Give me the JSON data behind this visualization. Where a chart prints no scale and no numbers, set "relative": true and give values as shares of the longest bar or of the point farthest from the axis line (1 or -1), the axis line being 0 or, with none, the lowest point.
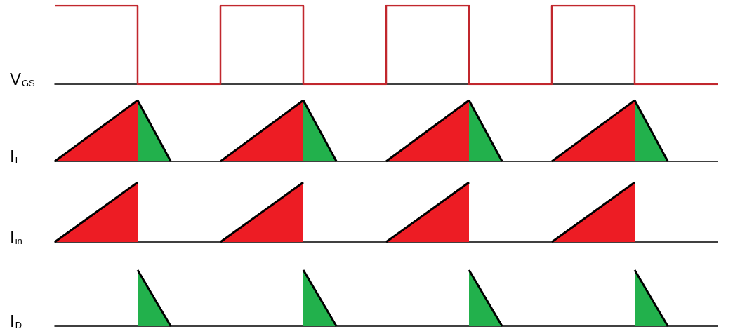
{
  "chart_data": [
    {
      "type": "step",
      "ylabel": "V$_{GS}$",
      "relative": true,
      "marker": "none",
      "tick_labels": false,
      "categories": [
        null,
        null,
        null,
        null,
        null,
        null,
        null,
        null,
        null,
        null,
        null,
        null,
        null,
        null,
        null,
        null,
        null,
        null,
        null,
        null,
        null,
        null,
        null,
        null,
        null,
        null,
        null,
        null,
        null,
        null,
        null,
        null,
        null,
        null,
        null,
        null,
        null,
        null,
        null,
        null,
        null,
        null,
        null,
        null,
        null,
        null,
        null,
        null,
        null,
        null,
        null,
        null,
        null,
        null,
        null,
        null,
        null,
        null,
        null,
        null,
        null,
        null,
        null,
        null,
        null,
        null,
        null,
        null,
        null,
        null,
        null,
        null,
        null,
        null,
        null,
        null,
        null,
        null,
        null,
        null,
        null
      ],
      "series": [
        {
          "color": "#c1272d",
          "values": [
            1,
            1,
            1,
            1,
            1,
            1,
            1,
            1,
            1,
            1,
            0,
            0,
            0,
            0,
            0,
            0,
            0,
            0,
            0,
            0,
            1,
            1,
            1,
            1,
            1,
            1,
            1,
            1,
            1,
            1,
            0,
            0,
            0,
            0,
            0,
            0,
            0,
            0,
            0,
            0,
            1,
            1,
            1,
            1,
            1,
            1,
            1,
            1,
            1,
            1,
            0,
            0,
            0,
            0,
            0,
            0,
            0,
            0,
            0,
            0,
            1,
            1,
            1,
            1,
            1,
            1,
            1,
            1,
            1,
            1,
            0,
            0,
            0,
            0,
            0,
            0,
            0,
            0,
            0,
            0,
            0
          ]
        }
      ]
    },
    {
      "type": "area",
      "ylabel": "I$_{L}$",
      "relative": true,
      "marker": "none",
      "tick_labels": false,
      "categories": [
        null,
        null,
        null,
        null,
        null,
        null,
        null,
        null,
        null,
        null,
        null,
        null,
        null,
        null,
        null,
        null,
        null,
        null,
        null,
        null,
        null,
        null,
        null,
        null,
        null,
        null,
        null,
        null,
        null,
        null,
        null,
        null,
        null,
        null,
        null,
        null,
        null,
        null,
        null,
        null,
        null,
        null,
        null,
        null,
        null,
        null,
        null,
        null,
        null,
        null,
        null,
        null,
        null,
        null,
        null,
        null,
        null,
        null,
        null,
        null,
        null,
        null,
        null,
        null,
        null,
        null,
        null,
        null,
        null,
        null,
        null,
        null,
        null,
        null,
        null,
        null,
        null,
        null,
        null,
        null,
        null
      ],
      "series": [
        {
          "color": "#ed1c24",
          "values": [
            0,
            0.1,
            0.2,
            0.3,
            0.4,
            0.5,
            0.6,
            0.7,
            0.8,
            0.9,
            1,
            null,
            null,
            null,
            null,
            null,
            null,
            null,
            null,
            null,
            0,
            0.1,
            0.2,
            0.3,
            0.4,
            0.5,
            0.6,
            0.7,
            0.8,
            0.9,
            1,
            null,
            null,
            null,
            null,
            null,
            null,
            null,
            null,
            null,
            0,
            0.1,
            0.2,
            0.3,
            0.4,
            0.5,
            0.6,
            0.7,
            0.8,
            0.9,
            1,
            null,
            null,
            null,
            null,
            null,
            null,
            null,
            null,
            null,
            0,
            0.1,
            0.2,
            0.3,
            0.4,
            0.5,
            0.6,
            0.7,
            0.8,
            0.9,
            1,
            null,
            null,
            null,
            null,
            null,
            null,
            null,
            null,
            null,
            null
          ]
        },
        {
          "color": "#22b14c",
          "values": [
            null,
            null,
            null,
            null,
            null,
            null,
            null,
            null,
            null,
            null,
            1,
            0.75,
            0.5,
            0.25,
            0,
            null,
            null,
            null,
            null,
            null,
            null,
            null,
            null,
            null,
            null,
            null,
            null,
            null,
            null,
            null,
            1,
            0.75,
            0.5,
            0.25,
            0,
            null,
            null,
            null,
            null,
            null,
            null,
            null,
            null,
            null,
            null,
            null,
            null,
            null,
            null,
            null,
            1,
            0.75,
            0.5,
            0.25,
            0,
            null,
            null,
            null,
            null,
            null,
            null,
            null,
            null,
            null,
            null,
            null,
            null,
            null,
            null,
            null,
            1,
            0.75,
            0.5,
            0.25,
            0,
            null,
            null,
            null,
            null,
            null,
            null
          ]
        }
      ]
    },
    {
      "type": "area",
      "ylabel": "I$_{in}$",
      "relative": true,
      "marker": "none",
      "tick_labels": false,
      "categories": [
        null,
        null,
        null,
        null,
        null,
        null,
        null,
        null,
        null,
        null,
        null,
        null,
        null,
        null,
        null,
        null,
        null,
        null,
        null,
        null,
        null,
        null,
        null,
        null,
        null,
        null,
        null,
        null,
        null,
        null,
        null,
        null,
        null,
        null,
        null,
        null,
        null,
        null,
        null,
        null,
        null,
        null,
        null,
        null,
        null,
        null,
        null,
        null,
        null,
        null,
        null,
        null,
        null,
        null,
        null,
        null,
        null,
        null,
        null,
        null,
        null,
        null,
        null,
        null,
        null,
        null,
        null,
        null,
        null,
        null,
        null,
        null,
        null,
        null,
        null,
        null,
        null,
        null,
        null,
        null,
        null
      ],
      "series": [
        {
          "color": "#ed1c24",
          "values": [
            0,
            0.1,
            0.2,
            0.3,
            0.4,
            0.5,
            0.6,
            0.7,
            0.8,
            0.9,
            1,
            null,
            null,
            null,
            null,
            null,
            null,
            null,
            null,
            null,
            0,
            0.1,
            0.2,
            0.3,
            0.4,
            0.5,
            0.6,
            0.7,
            0.8,
            0.9,
            1,
            null,
            null,
            null,
            null,
            null,
            null,
            null,
            null,
            null,
            0,
            0.1,
            0.2,
            0.3,
            0.4,
            0.5,
            0.6,
            0.7,
            0.8,
            0.9,
            1,
            null,
            null,
            null,
            null,
            null,
            null,
            null,
            null,
            null,
            0,
            0.1,
            0.2,
            0.3,
            0.4,
            0.5,
            0.6,
            0.7,
            0.8,
            0.9,
            1,
            null,
            null,
            null,
            null,
            null,
            null,
            null,
            null,
            null,
            null
          ]
        }
      ]
    },
    {
      "type": "area",
      "ylabel": "I$_{D}$",
      "relative": true,
      "marker": "none",
      "tick_labels": false,
      "categories": [
        null,
        null,
        null,
        null,
        null,
        null,
        null,
        null,
        null,
        null,
        null,
        null,
        null,
        null,
        null,
        null,
        null,
        null,
        null,
        null,
        null,
        null,
        null,
        null,
        null,
        null,
        null,
        null,
        null,
        null,
        null,
        null,
        null,
        null,
        null,
        null,
        null,
        null,
        null,
        null,
        null,
        null,
        null,
        null,
        null,
        null,
        null,
        null,
        null,
        null,
        null,
        null,
        null,
        null,
        null,
        null,
        null,
        null,
        null,
        null,
        null,
        null,
        null,
        null,
        null,
        null,
        null,
        null,
        null,
        null,
        null,
        null,
        null,
        null,
        null,
        null,
        null,
        null,
        null,
        null,
        null
      ],
      "series": [
        {
          "color": "#22b14c",
          "values": [
            null,
            null,
            null,
            null,
            null,
            null,
            null,
            null,
            null,
            null,
            1,
            0.75,
            0.5,
            0.25,
            0,
            null,
            null,
            null,
            null,
            null,
            null,
            null,
            null,
            null,
            null,
            null,
            null,
            null,
            null,
            null,
            1,
            0.75,
            0.5,
            0.25,
            0,
            null,
            null,
            null,
            null,
            null,
            null,
            null,
            null,
            null,
            null,
            null,
            null,
            null,
            null,
            null,
            1,
            0.75,
            0.5,
            0.25,
            0,
            null,
            null,
            null,
            null,
            null,
            null,
            null,
            null,
            null,
            null,
            null,
            null,
            null,
            null,
            null,
            1,
            0.75,
            0.5,
            0.25,
            0,
            null,
            null,
            null,
            null,
            null,
            null
          ]
        }
      ]
    }
  ]
}
